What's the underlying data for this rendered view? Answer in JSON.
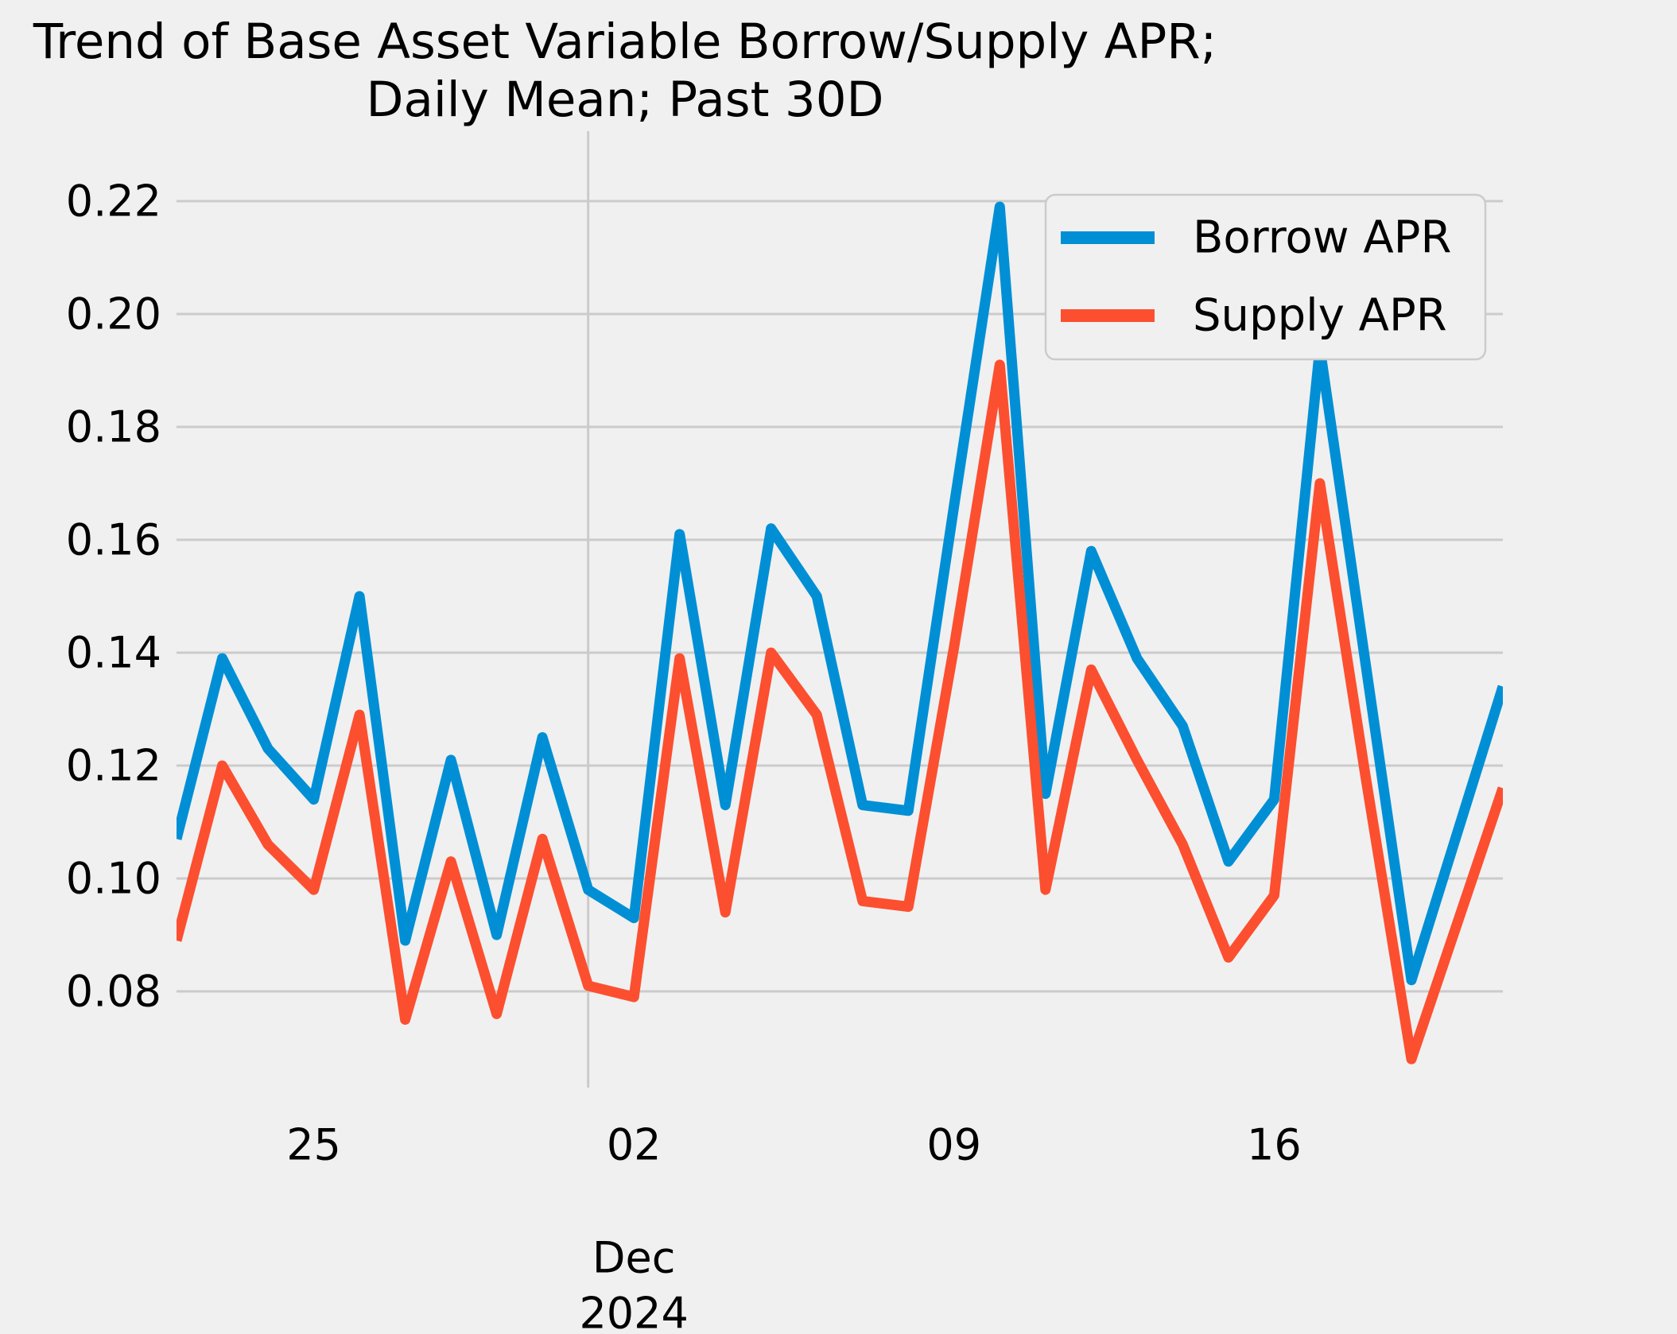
{
  "title_line1": "Trend of Base Asset Variable Borrow/Supply APR;",
  "title_line2": "Daily Mean; Past 30D",
  "colors": {
    "background": "#f0f0f0",
    "grid": "#cbcbcb",
    "text": "#000000",
    "borrow": "#008fd5",
    "supply": "#fc4f30"
  },
  "chart_data": {
    "type": "line",
    "title": "Trend of Base Asset Variable Borrow/Supply APR; Daily Mean; Past 30D",
    "xlabel": "",
    "ylabel": "",
    "x_dates": [
      "Nov 22",
      "Nov 23",
      "Nov 24",
      "Nov 25",
      "Nov 26",
      "Nov 27",
      "Nov 28",
      "Nov 29",
      "Nov 30",
      "Dec 01",
      "Dec 02",
      "Dec 03",
      "Dec 04",
      "Dec 05",
      "Dec 06",
      "Dec 07",
      "Dec 08",
      "Dec 09",
      "Dec 10",
      "Dec 11",
      "Dec 12",
      "Dec 13",
      "Dec 14",
      "Dec 15",
      "Dec 16",
      "Dec 17",
      "Dec 18",
      "Dec 19",
      "Dec 20",
      "Dec 21"
    ],
    "series": [
      {
        "name": "Borrow APR",
        "color": "#008fd5",
        "values": [
          0.107,
          0.139,
          0.123,
          0.114,
          0.15,
          0.089,
          0.121,
          0.09,
          0.125,
          0.098,
          0.093,
          0.161,
          0.113,
          0.162,
          0.15,
          0.113,
          0.112,
          0.166,
          0.219,
          0.115,
          0.158,
          0.139,
          0.127,
          0.103,
          0.114,
          0.194,
          0.138,
          0.082,
          0.108,
          0.134
        ]
      },
      {
        "name": "Supply APR",
        "color": "#fc4f30",
        "values": [
          0.089,
          0.12,
          0.106,
          0.098,
          0.129,
          0.075,
          0.103,
          0.076,
          0.107,
          0.081,
          0.079,
          0.139,
          0.094,
          0.14,
          0.129,
          0.096,
          0.095,
          0.141,
          0.191,
          0.098,
          0.137,
          0.121,
          0.106,
          0.086,
          0.097,
          0.17,
          0.118,
          0.068,
          0.092,
          0.116
        ]
      }
    ],
    "y_ticks": [
      {
        "value": 0.08,
        "label": "0.08"
      },
      {
        "value": 0.1,
        "label": "0.10"
      },
      {
        "value": 0.12,
        "label": "0.12"
      },
      {
        "value": 0.14,
        "label": "0.14"
      },
      {
        "value": 0.16,
        "label": "0.16"
      },
      {
        "value": 0.18,
        "label": "0.18"
      },
      {
        "value": 0.2,
        "label": "0.20"
      },
      {
        "value": 0.22,
        "label": "0.22"
      }
    ],
    "x_ticks": [
      {
        "index": 3,
        "label": "25"
      },
      {
        "index": 10,
        "label": "02"
      },
      {
        "index": 17,
        "label": "09"
      },
      {
        "index": 24,
        "label": "16"
      }
    ],
    "x_grid_indices": [
      9
    ],
    "x_offset_label_line1": "Dec",
    "x_offset_label_line2": "2024",
    "ylim": [
      0.063,
      0.2325
    ],
    "grid": "horizontal at every y tick; single vertical line at Dec 01",
    "legend": {
      "position": "upper right",
      "entries": [
        "Borrow APR",
        "Supply APR"
      ]
    }
  }
}
